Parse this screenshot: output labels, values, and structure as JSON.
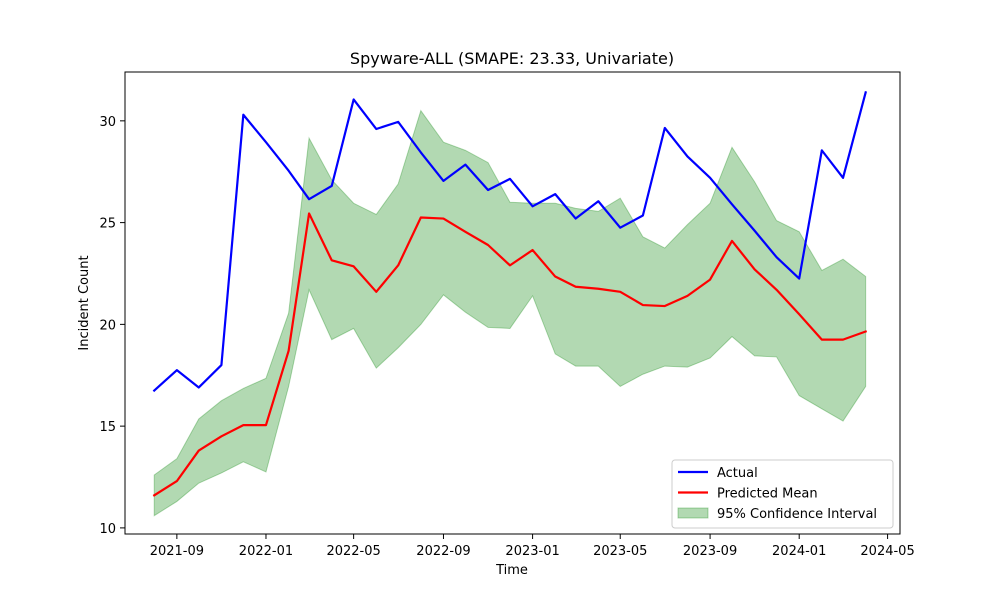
{
  "chart_data": {
    "type": "line",
    "title": "Spyware-ALL (SMAPE: 23.33, Univariate)",
    "xlabel": "Time",
    "ylabel": "Incident Count",
    "ylim": [
      9.7,
      32.4
    ],
    "xlim": [
      "2021-06-22",
      "2024-05-18"
    ],
    "x": [
      "2021-08-01",
      "2021-09-01",
      "2021-10-01",
      "2021-11-01",
      "2021-12-01",
      "2022-01-01",
      "2022-02-01",
      "2022-03-01",
      "2022-04-01",
      "2022-05-01",
      "2022-06-01",
      "2022-07-01",
      "2022-08-01",
      "2022-09-01",
      "2022-10-01",
      "2022-11-01",
      "2022-12-01",
      "2023-01-01",
      "2023-02-01",
      "2023-03-01",
      "2023-04-01",
      "2023-05-01",
      "2023-06-01",
      "2023-07-01",
      "2023-08-01",
      "2023-09-01",
      "2023-10-01",
      "2023-11-01",
      "2023-12-01",
      "2024-01-01",
      "2024-02-01",
      "2024-03-01",
      "2024-04-01"
    ],
    "x_ticks": [
      "2021-09",
      "2022-01",
      "2022-05",
      "2022-09",
      "2023-01",
      "2023-05",
      "2023-09",
      "2024-01",
      "2024-05"
    ],
    "y_ticks": [
      10,
      15,
      20,
      25,
      30
    ],
    "series": [
      {
        "name": "Actual",
        "color": "#0000ff",
        "values": [
          16.75,
          17.75,
          16.9,
          18.0,
          30.3,
          28.95,
          27.55,
          26.15,
          26.8,
          31.05,
          29.6,
          29.95,
          28.45,
          27.05,
          27.85,
          26.6,
          27.15,
          25.8,
          26.4,
          25.2,
          26.05,
          24.75,
          25.35,
          29.65,
          28.25,
          27.2,
          25.9,
          24.6,
          23.3,
          22.25,
          28.55,
          27.2,
          31.4
        ]
      },
      {
        "name": "Predicted Mean",
        "color": "#ff0000",
        "values": [
          11.6,
          12.3,
          13.8,
          14.5,
          15.05,
          15.05,
          18.7,
          25.45,
          23.15,
          22.85,
          21.6,
          22.9,
          25.25,
          25.2,
          24.55,
          23.9,
          22.9,
          23.65,
          22.35,
          21.85,
          21.75,
          21.6,
          20.95,
          20.9,
          21.4,
          22.2,
          24.1,
          22.7,
          21.7,
          20.5,
          19.25,
          19.25,
          19.65
        ]
      }
    ],
    "interval": {
      "name": "95% Confidence Interval",
      "color": "#008000",
      "lower": [
        10.6,
        11.3,
        12.2,
        12.7,
        13.25,
        12.75,
        16.95,
        21.7,
        19.25,
        19.8,
        17.85,
        18.85,
        20.0,
        21.45,
        20.6,
        19.85,
        19.8,
        21.4,
        18.55,
        17.95,
        17.95,
        16.95,
        17.55,
        17.95,
        17.9,
        18.35,
        19.4,
        18.45,
        18.4,
        16.5,
        15.85,
        15.25,
        16.95
      ],
      "upper": [
        12.6,
        13.4,
        15.35,
        16.25,
        16.85,
        17.35,
        20.55,
        29.15,
        27.1,
        25.95,
        25.4,
        26.9,
        30.5,
        28.95,
        28.55,
        27.95,
        26.0,
        25.95,
        25.95,
        25.7,
        25.55,
        26.2,
        24.3,
        23.75,
        24.9,
        25.95,
        28.7,
        27.0,
        25.1,
        24.55,
        22.65,
        23.2,
        22.35
      ]
    },
    "grid": false,
    "legend_position": "lower-right"
  }
}
